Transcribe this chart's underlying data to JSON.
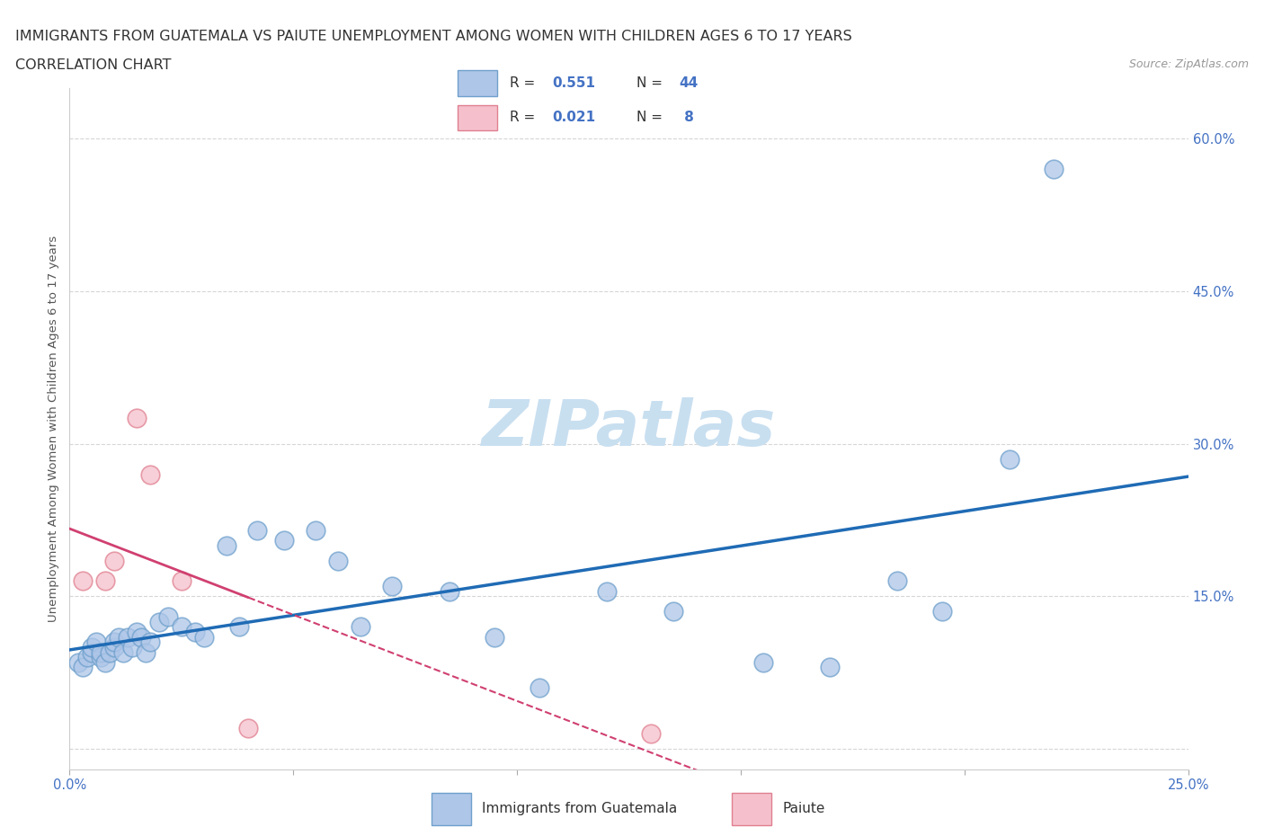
{
  "title_line1": "IMMIGRANTS FROM GUATEMALA VS PAIUTE UNEMPLOYMENT AMONG WOMEN WITH CHILDREN AGES 6 TO 17 YEARS",
  "title_line2": "CORRELATION CHART",
  "source_text": "Source: ZipAtlas.com",
  "ylabel": "Unemployment Among Women with Children Ages 6 to 17 years",
  "xlim": [
    0.0,
    0.25
  ],
  "ylim": [
    -0.02,
    0.65
  ],
  "xtick_positions": [
    0.0,
    0.05,
    0.1,
    0.15,
    0.2,
    0.25
  ],
  "xticklabels": [
    "0.0%",
    "",
    "",
    "",
    "",
    "25.0%"
  ],
  "ytick_positions": [
    0.0,
    0.15,
    0.3,
    0.45,
    0.6
  ],
  "yticklabels": [
    "",
    "15.0%",
    "30.0%",
    "45.0%",
    "60.0%"
  ],
  "color_blue_fill": "#aec6e8",
  "color_blue_edge": "#6fa0cc",
  "color_pink_fill": "#f5c0cc",
  "color_pink_edge": "#e08090",
  "color_line_blue": "#1f6bb5",
  "color_line_pink": "#d04070",
  "color_grid": "#cccccc",
  "color_tick_label": "#4472c4",
  "watermark_color": "#c8dff0",
  "guatemala_x": [
    0.002,
    0.003,
    0.004,
    0.005,
    0.005,
    0.006,
    0.007,
    0.007,
    0.008,
    0.009,
    0.01,
    0.01,
    0.011,
    0.012,
    0.013,
    0.014,
    0.015,
    0.016,
    0.017,
    0.018,
    0.02,
    0.022,
    0.025,
    0.028,
    0.03,
    0.035,
    0.038,
    0.042,
    0.048,
    0.055,
    0.06,
    0.065,
    0.072,
    0.085,
    0.095,
    0.105,
    0.12,
    0.135,
    0.155,
    0.17,
    0.185,
    0.195,
    0.21,
    0.22
  ],
  "guatemala_y": [
    0.085,
    0.08,
    0.09,
    0.095,
    0.1,
    0.105,
    0.09,
    0.095,
    0.085,
    0.095,
    0.1,
    0.105,
    0.11,
    0.095,
    0.11,
    0.1,
    0.115,
    0.11,
    0.095,
    0.105,
    0.125,
    0.13,
    0.12,
    0.115,
    0.11,
    0.2,
    0.12,
    0.215,
    0.205,
    0.215,
    0.185,
    0.12,
    0.16,
    0.155,
    0.11,
    0.06,
    0.155,
    0.135,
    0.085,
    0.08,
    0.165,
    0.135,
    0.285,
    0.57
  ],
  "paiute_x": [
    0.003,
    0.008,
    0.01,
    0.015,
    0.018,
    0.025,
    0.04,
    0.13
  ],
  "paiute_y": [
    0.165,
    0.165,
    0.185,
    0.325,
    0.27,
    0.165,
    0.02,
    0.015
  ]
}
